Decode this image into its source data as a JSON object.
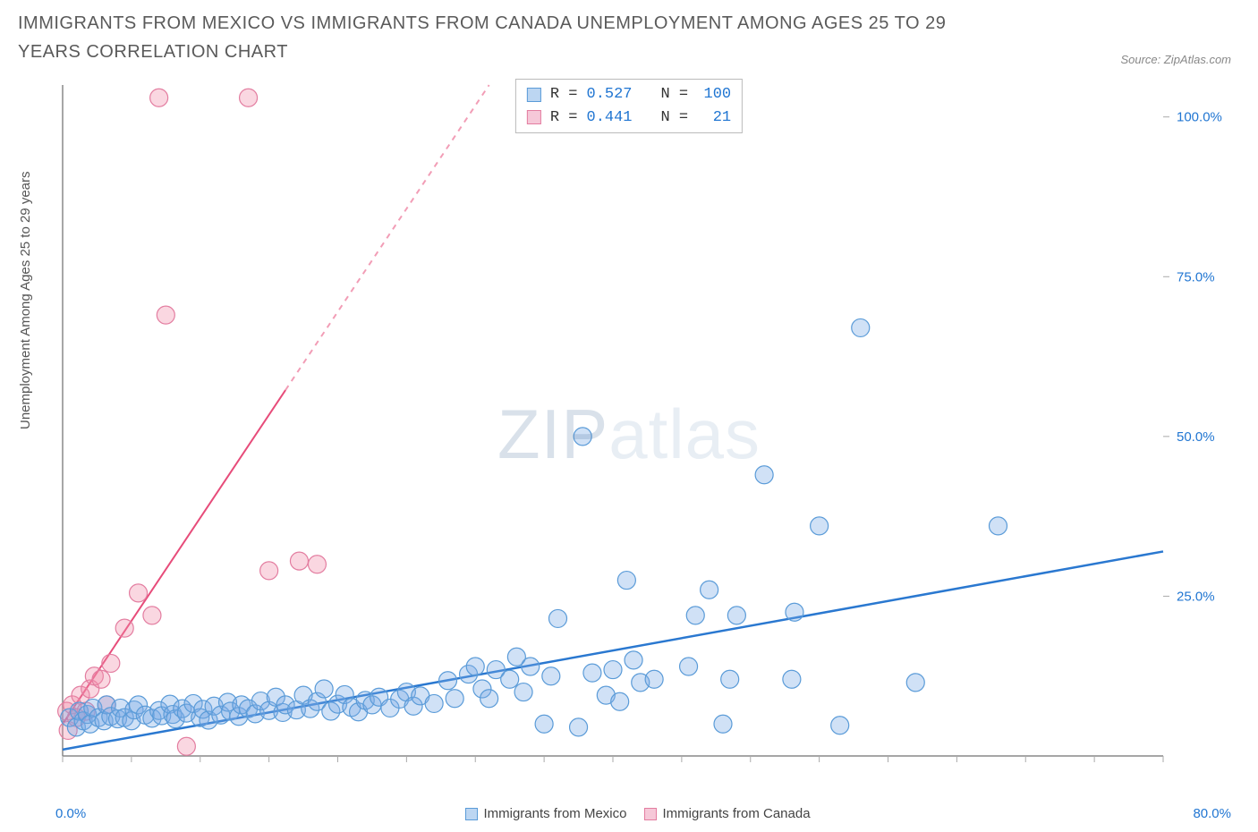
{
  "title": "IMMIGRANTS FROM MEXICO VS IMMIGRANTS FROM CANADA UNEMPLOYMENT AMONG AGES 25 TO 29 YEARS CORRELATION CHART",
  "source": "Source: ZipAtlas.com",
  "y_axis_label": "Unemployment Among Ages 25 to 29 years",
  "watermark_bold": "ZIP",
  "watermark_light": "atlas",
  "chart": {
    "type": "scatter",
    "background_color": "#ffffff",
    "plot_border_color": "#888888",
    "axis_tick_color": "#aaaaaa",
    "x_range": [
      0,
      80
    ],
    "y_range": [
      0,
      105
    ],
    "x_ticks": [
      0,
      5,
      10,
      15,
      20,
      25,
      30,
      35,
      40,
      45,
      50,
      55,
      60,
      65,
      70,
      75,
      80
    ],
    "x_label_min": "0.0%",
    "x_label_max": "80.0%",
    "y_ticks": [
      {
        "v": 25,
        "label": "25.0%"
      },
      {
        "v": 50,
        "label": "50.0%"
      },
      {
        "v": 75,
        "label": "75.0%"
      },
      {
        "v": 100,
        "label": "100.0%"
      }
    ],
    "y_tick_label_color": "#2176d2",
    "y_tick_fontsize": 15,
    "marker_radius": 10,
    "marker_stroke_width": 1.2,
    "series": [
      {
        "name": "Immigrants from Mexico",
        "color_fill": "rgba(120,170,230,0.35)",
        "color_stroke": "#5a9bd8",
        "swatch_fill": "#bcd6f2",
        "swatch_stroke": "#5a9bd8",
        "R": "0.527",
        "N": "100",
        "trend": {
          "x1": 0,
          "y1": 1,
          "x2": 80,
          "y2": 32,
          "stroke": "#2a78d0",
          "width": 2.5,
          "dash_from_x": 80
        },
        "points": [
          [
            0.5,
            6
          ],
          [
            1,
            4.5
          ],
          [
            1.2,
            7
          ],
          [
            1.5,
            5.5
          ],
          [
            1.8,
            6.5
          ],
          [
            2,
            5
          ],
          [
            2.2,
            7.5
          ],
          [
            2.6,
            6
          ],
          [
            3,
            5.5
          ],
          [
            3.2,
            8
          ],
          [
            3.5,
            6.2
          ],
          [
            4,
            5.8
          ],
          [
            4.2,
            7.5
          ],
          [
            4.5,
            6
          ],
          [
            5,
            5.5
          ],
          [
            5.2,
            7.2
          ],
          [
            5.5,
            8
          ],
          [
            6,
            6.4
          ],
          [
            6.5,
            5.9
          ],
          [
            7,
            7.1
          ],
          [
            7.2,
            6.3
          ],
          [
            7.8,
            8.1
          ],
          [
            8,
            6.5
          ],
          [
            8.2,
            5.8
          ],
          [
            8.7,
            7.4
          ],
          [
            9,
            6.7
          ],
          [
            9.5,
            8.2
          ],
          [
            10,
            6.0
          ],
          [
            10.2,
            7.3
          ],
          [
            10.6,
            5.6
          ],
          [
            11,
            7.8
          ],
          [
            11.5,
            6.4
          ],
          [
            12,
            8.4
          ],
          [
            12.2,
            7.0
          ],
          [
            12.8,
            6.2
          ],
          [
            13,
            8.0
          ],
          [
            13.5,
            7.4
          ],
          [
            14,
            6.6
          ],
          [
            14.4,
            8.6
          ],
          [
            15,
            7.1
          ],
          [
            15.5,
            9.2
          ],
          [
            16,
            6.8
          ],
          [
            16.2,
            8.0
          ],
          [
            17,
            7.2
          ],
          [
            17.5,
            9.5
          ],
          [
            18,
            7.4
          ],
          [
            18.5,
            8.5
          ],
          [
            19,
            10.5
          ],
          [
            19.5,
            7.0
          ],
          [
            20,
            8.1
          ],
          [
            20.5,
            9.6
          ],
          [
            21,
            7.6
          ],
          [
            21.5,
            6.9
          ],
          [
            22,
            8.7
          ],
          [
            22.5,
            8.0
          ],
          [
            23,
            9.2
          ],
          [
            23.8,
            7.5
          ],
          [
            24.5,
            8.9
          ],
          [
            25,
            10.0
          ],
          [
            25.5,
            7.8
          ],
          [
            26,
            9.4
          ],
          [
            27,
            8.2
          ],
          [
            28,
            11.8
          ],
          [
            28.5,
            9.0
          ],
          [
            29.5,
            12.8
          ],
          [
            30,
            14.0
          ],
          [
            30.5,
            10.5
          ],
          [
            31,
            9.0
          ],
          [
            31.5,
            13.5
          ],
          [
            32.5,
            12.0
          ],
          [
            33,
            15.5
          ],
          [
            33.5,
            10.0
          ],
          [
            34,
            14.0
          ],
          [
            35,
            5.0
          ],
          [
            35.5,
            12.5
          ],
          [
            36,
            21.5
          ],
          [
            37.5,
            4.5
          ],
          [
            37.8,
            50.0
          ],
          [
            38.5,
            13.0
          ],
          [
            39.5,
            9.5
          ],
          [
            40,
            13.5
          ],
          [
            40.5,
            8.5
          ],
          [
            41,
            27.5
          ],
          [
            41.5,
            15.0
          ],
          [
            42,
            11.5
          ],
          [
            43,
            12.0
          ],
          [
            45.5,
            14.0
          ],
          [
            46,
            22.0
          ],
          [
            47,
            26.0
          ],
          [
            48,
            5.0
          ],
          [
            48.5,
            12.0
          ],
          [
            49,
            22.0
          ],
          [
            51,
            44.0
          ],
          [
            53,
            12.0
          ],
          [
            53.2,
            22.5
          ],
          [
            55,
            36.0
          ],
          [
            56.5,
            4.8
          ],
          [
            58,
            67.0
          ],
          [
            62,
            11.5
          ],
          [
            68,
            36.0
          ]
        ]
      },
      {
        "name": "Immigrants from Canada",
        "color_fill": "rgba(240,140,170,0.35)",
        "color_stroke": "#e37da0",
        "swatch_fill": "#f6c8d8",
        "swatch_stroke": "#e37da0",
        "R": "0.441",
        "N": "21",
        "trend": {
          "x1": 0,
          "y1": 5,
          "x2": 31,
          "y2": 105,
          "stroke": "#e74c7a",
          "width": 2,
          "dash_from_x": 16.2
        },
        "points": [
          [
            0.3,
            7.0
          ],
          [
            0.4,
            4.0
          ],
          [
            0.7,
            8.0
          ],
          [
            1.0,
            6.0
          ],
          [
            1.3,
            9.5
          ],
          [
            1.7,
            7.0
          ],
          [
            2.0,
            10.5
          ],
          [
            2.3,
            12.5
          ],
          [
            2.8,
            12.0
          ],
          [
            3.2,
            8.0
          ],
          [
            3.5,
            14.5
          ],
          [
            4.5,
            20.0
          ],
          [
            5.5,
            25.5
          ],
          [
            6.5,
            22.0
          ],
          [
            7.0,
            103.0
          ],
          [
            7.5,
            69.0
          ],
          [
            9.0,
            1.5
          ],
          [
            13.5,
            103.0
          ],
          [
            15.0,
            29.0
          ],
          [
            17.2,
            30.5
          ],
          [
            18.5,
            30.0
          ]
        ]
      }
    ]
  },
  "stats_labels": {
    "R": "R =",
    "N": "N ="
  },
  "legend": {
    "items": [
      {
        "label": "Immigrants from Mexico",
        "fill": "#bcd6f2",
        "stroke": "#5a9bd8"
      },
      {
        "label": "Immigrants from Canada",
        "fill": "#f6c8d8",
        "stroke": "#e37da0"
      }
    ]
  }
}
